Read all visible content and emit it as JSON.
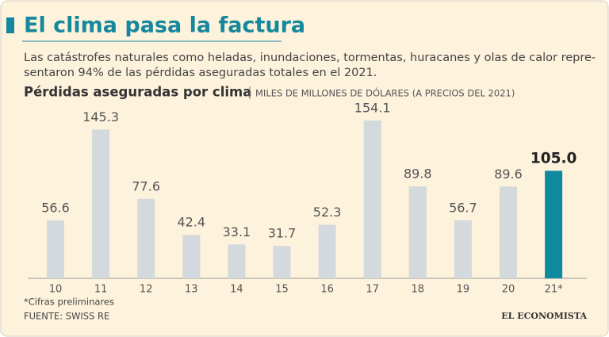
{
  "chart_data": {
    "type": "bar",
    "title": "El clima pasa la factura",
    "subtitle": [
      "Las catástrofes naturales como heladas, inundaciones, tormentas, huracanes y olas de calor repre-",
      "sentaron 94% de las pérdidas aseguradas totales en el 2021."
    ],
    "plot_title": "Pérdidas aseguradas por clima",
    "unit": "MILES DE MILLONES DE DÓLARES (A PRECIOS DEL 2021)",
    "categories": [
      "10",
      "11",
      "12",
      "13",
      "14",
      "15",
      "16",
      "17",
      "18",
      "19",
      "20",
      "21*"
    ],
    "values": [
      56.6,
      145.3,
      77.6,
      42.4,
      33.1,
      31.7,
      52.3,
      154.1,
      89.8,
      56.7,
      89.6,
      105.0
    ],
    "value_labels": [
      "56.6",
      "145.3",
      "77.6",
      "42.4",
      "33.1",
      "31.7",
      "52.3",
      "154.1",
      "89.8",
      "56.7",
      "89.6",
      "105.0"
    ],
    "colors": [
      "#d3d9dc",
      "#d3d9dc",
      "#d3d9dc",
      "#d3d9dc",
      "#d3d9dc",
      "#d3d9dc",
      "#d3d9dc",
      "#d3d9dc",
      "#d3d9dc",
      "#d3d9dc",
      "#d3d9dc",
      "#0e8aa0"
    ],
    "note": "*Cifras preliminares",
    "source": "FUENTE: SWISS RE",
    "brand": "EL ECONOMISTA"
  }
}
